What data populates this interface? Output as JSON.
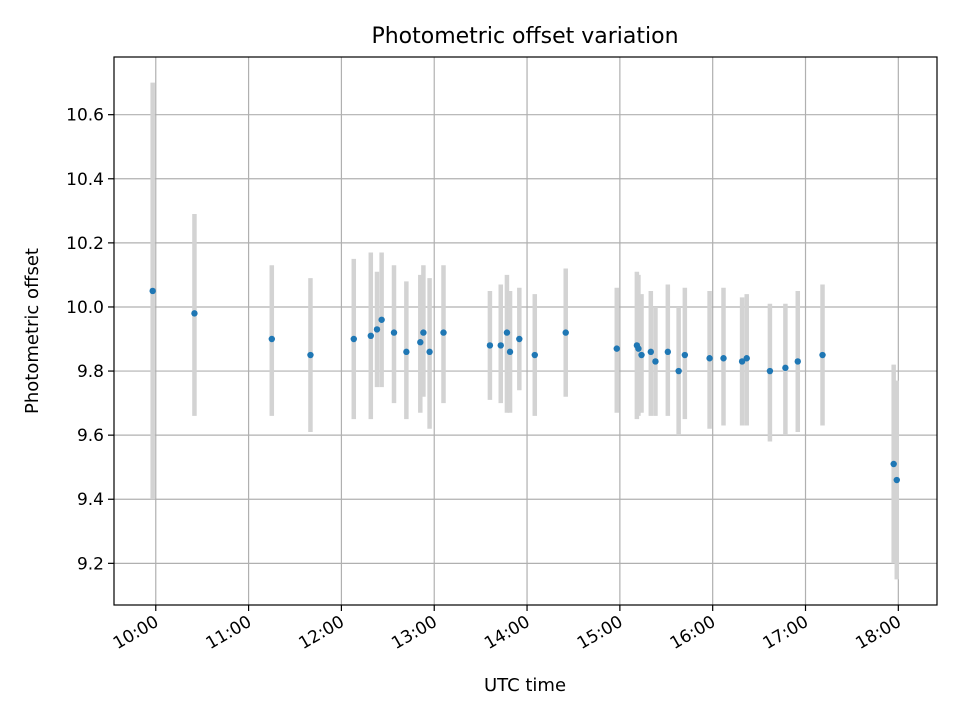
{
  "chart_data": {
    "type": "scatter",
    "title": "Photometric offset variation",
    "xlabel": "UTC time",
    "ylabel": "Photometric offset",
    "xlim": [
      "09:33",
      "18:25"
    ],
    "ylim": [
      9.07,
      10.78
    ],
    "grid": true,
    "x_ticks": [
      "10:00",
      "11:00",
      "12:00",
      "13:00",
      "14:00",
      "15:00",
      "16:00",
      "17:00",
      "18:00"
    ],
    "y_ticks": [
      9.2,
      9.4,
      9.6,
      9.8,
      10.0,
      10.2,
      10.4,
      10.6
    ],
    "y_tick_labels": [
      "9.2",
      "9.4",
      "9.6",
      "9.8",
      "10.0",
      "10.2",
      "10.4",
      "10.6"
    ],
    "point_color": "#1f77b4",
    "errorbar_color": "#d3d3d3",
    "points": [
      {
        "x": "09:58",
        "y": 10.05,
        "lo": 9.4,
        "hi": 10.7
      },
      {
        "x": "10:25",
        "y": 9.98,
        "lo": 9.66,
        "hi": 10.29
      },
      {
        "x": "11:15",
        "y": 9.9,
        "lo": 9.66,
        "hi": 10.13
      },
      {
        "x": "11:40",
        "y": 9.85,
        "lo": 9.61,
        "hi": 10.09
      },
      {
        "x": "12:08",
        "y": 9.9,
        "lo": 9.65,
        "hi": 10.15
      },
      {
        "x": "12:19",
        "y": 9.91,
        "lo": 9.65,
        "hi": 10.17
      },
      {
        "x": "12:23",
        "y": 9.93,
        "lo": 9.75,
        "hi": 10.11
      },
      {
        "x": "12:26",
        "y": 9.96,
        "lo": 9.75,
        "hi": 10.17
      },
      {
        "x": "12:34",
        "y": 9.92,
        "lo": 9.7,
        "hi": 10.13
      },
      {
        "x": "12:42",
        "y": 9.86,
        "lo": 9.65,
        "hi": 10.08
      },
      {
        "x": "12:51",
        "y": 9.89,
        "lo": 9.67,
        "hi": 10.1
      },
      {
        "x": "12:53",
        "y": 9.92,
        "lo": 9.72,
        "hi": 10.13
      },
      {
        "x": "12:57",
        "y": 9.86,
        "lo": 9.62,
        "hi": 10.09
      },
      {
        "x": "13:06",
        "y": 9.92,
        "lo": 9.7,
        "hi": 10.13
      },
      {
        "x": "13:36",
        "y": 9.88,
        "lo": 9.71,
        "hi": 10.05
      },
      {
        "x": "13:43",
        "y": 9.88,
        "lo": 9.7,
        "hi": 10.07
      },
      {
        "x": "13:47",
        "y": 9.92,
        "lo": 9.67,
        "hi": 10.1
      },
      {
        "x": "13:49",
        "y": 9.86,
        "lo": 9.67,
        "hi": 10.05
      },
      {
        "x": "13:55",
        "y": 9.9,
        "lo": 9.74,
        "hi": 10.06
      },
      {
        "x": "14:05",
        "y": 9.85,
        "lo": 9.66,
        "hi": 10.04
      },
      {
        "x": "14:25",
        "y": 9.92,
        "lo": 9.72,
        "hi": 10.12
      },
      {
        "x": "14:58",
        "y": 9.87,
        "lo": 9.67,
        "hi": 10.06
      },
      {
        "x": "15:11",
        "y": 9.88,
        "lo": 9.65,
        "hi": 10.11
      },
      {
        "x": "15:12",
        "y": 9.87,
        "lo": 9.66,
        "hi": 10.1
      },
      {
        "x": "15:14",
        "y": 9.85,
        "lo": 9.67,
        "hi": 10.04
      },
      {
        "x": "15:20",
        "y": 9.86,
        "lo": 9.66,
        "hi": 10.05
      },
      {
        "x": "15:23",
        "y": 9.83,
        "lo": 9.66,
        "hi": 10.0
      },
      {
        "x": "15:31",
        "y": 9.86,
        "lo": 9.66,
        "hi": 10.07
      },
      {
        "x": "15:38",
        "y": 9.8,
        "lo": 9.6,
        "hi": 10.0
      },
      {
        "x": "15:42",
        "y": 9.85,
        "lo": 9.65,
        "hi": 10.06
      },
      {
        "x": "15:58",
        "y": 9.84,
        "lo": 9.62,
        "hi": 10.05
      },
      {
        "x": "16:07",
        "y": 9.84,
        "lo": 9.63,
        "hi": 10.06
      },
      {
        "x": "16:19",
        "y": 9.83,
        "lo": 9.63,
        "hi": 10.03
      },
      {
        "x": "16:22",
        "y": 9.84,
        "lo": 9.63,
        "hi": 10.04
      },
      {
        "x": "16:37",
        "y": 9.8,
        "lo": 9.58,
        "hi": 10.01
      },
      {
        "x": "16:47",
        "y": 9.81,
        "lo": 9.6,
        "hi": 10.01
      },
      {
        "x": "16:55",
        "y": 9.83,
        "lo": 9.61,
        "hi": 10.05
      },
      {
        "x": "17:11",
        "y": 9.85,
        "lo": 9.63,
        "hi": 10.07
      },
      {
        "x": "17:57",
        "y": 9.51,
        "lo": 9.2,
        "hi": 9.82
      },
      {
        "x": "17:59",
        "y": 9.46,
        "lo": 9.15,
        "hi": 9.77
      }
    ]
  }
}
